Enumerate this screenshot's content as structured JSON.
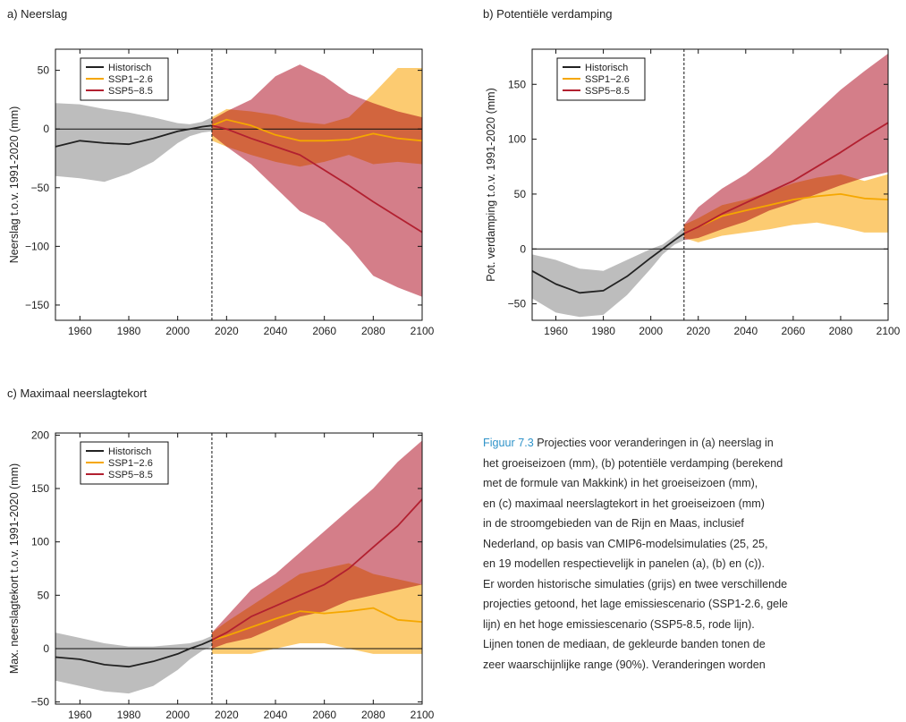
{
  "chart_data": [
    {
      "type": "line",
      "title": "a) Neerslag",
      "xlabel": "",
      "ylabel": "Neerslag t.o.v. 1991-2020 (mm)",
      "xlim": [
        1950,
        2100
      ],
      "ylim": [
        -163,
        68
      ],
      "xticks": [
        1960,
        1980,
        2000,
        2020,
        2040,
        2060,
        2080,
        2100
      ],
      "yticks": [
        50,
        0,
        -50,
        -100,
        -150
      ],
      "ytick_labels": [
        "50",
        "0",
        "−50",
        "−100",
        "−150"
      ],
      "split_year": 2014,
      "legend": [
        "Historisch",
        "SSP1−2.6",
        "SSP5−8.5"
      ],
      "legend_placement": "top-left",
      "series": [
        {
          "name": "Historisch",
          "color": "#222222",
          "band_color": "#bdbdbd",
          "x": [
            1950,
            1960,
            1970,
            1980,
            1990,
            2000,
            2005,
            2010,
            2014
          ],
          "y": [
            -15,
            -10,
            -12,
            -13,
            -8,
            -2,
            0,
            2,
            3
          ],
          "lower": [
            -40,
            -42,
            -45,
            -38,
            -28,
            -12,
            -6,
            -3,
            -2
          ],
          "upper": [
            22,
            21,
            17,
            14,
            10,
            5,
            4,
            6,
            10
          ]
        },
        {
          "name": "SSP1−2.6",
          "color": "#f5a700",
          "band_color": "#fbc258",
          "x": [
            2014,
            2020,
            2030,
            2040,
            2050,
            2060,
            2070,
            2080,
            2090,
            2100
          ],
          "y": [
            3,
            8,
            3,
            -5,
            -10,
            -10,
            -9,
            -4,
            -8,
            -10
          ],
          "lower": [
            -10,
            -15,
            -22,
            -28,
            -32,
            -28,
            -22,
            -30,
            -28,
            -30
          ],
          "upper": [
            10,
            17,
            15,
            12,
            6,
            4,
            10,
            30,
            52,
            52
          ]
        },
        {
          "name": "SSP5−8.5",
          "color": "#b22030",
          "band_color": "#c85a68",
          "x": [
            2014,
            2020,
            2030,
            2040,
            2050,
            2060,
            2070,
            2080,
            2090,
            2100
          ],
          "y": [
            3,
            0,
            -8,
            -15,
            -22,
            -35,
            -48,
            -62,
            -75,
            -88
          ],
          "lower": [
            -5,
            -15,
            -30,
            -50,
            -70,
            -80,
            -100,
            -125,
            -135,
            -143
          ],
          "upper": [
            8,
            15,
            25,
            45,
            55,
            45,
            30,
            22,
            15,
            10
          ]
        }
      ]
    },
    {
      "type": "line",
      "title": "b) Potentiële verdamping",
      "xlabel": "",
      "ylabel": "Pot. verdamping t.o.v. 1991-2020 (mm)",
      "xlim": [
        1950,
        2100
      ],
      "ylim": [
        -65,
        182
      ],
      "xticks": [
        1960,
        1980,
        2000,
        2020,
        2040,
        2060,
        2080,
        2100
      ],
      "yticks": [
        150,
        100,
        50,
        0,
        -50
      ],
      "ytick_labels": [
        "150",
        "100",
        "50",
        "0",
        "−50"
      ],
      "split_year": 2014,
      "legend": [
        "Historisch",
        "SSP1−2.6",
        "SSP5−8.5"
      ],
      "legend_placement": "top-left",
      "series": [
        {
          "name": "Historisch",
          "color": "#222222",
          "band_color": "#bdbdbd",
          "x": [
            1950,
            1960,
            1970,
            1980,
            1990,
            2000,
            2005,
            2010,
            2014
          ],
          "y": [
            -20,
            -32,
            -40,
            -38,
            -25,
            -8,
            0,
            8,
            14
          ],
          "lower": [
            -45,
            -58,
            -62,
            -60,
            -42,
            -18,
            -5,
            4,
            8
          ],
          "upper": [
            -5,
            -10,
            -18,
            -20,
            -10,
            0,
            4,
            12,
            20
          ]
        },
        {
          "name": "SSP1−2.6",
          "color": "#f5a700",
          "band_color": "#fbc258",
          "x": [
            2014,
            2020,
            2030,
            2040,
            2050,
            2060,
            2070,
            2080,
            2090,
            2100
          ],
          "y": [
            14,
            20,
            30,
            35,
            40,
            45,
            48,
            50,
            46,
            45
          ],
          "lower": [
            10,
            6,
            12,
            15,
            18,
            22,
            24,
            20,
            15,
            15
          ],
          "upper": [
            22,
            28,
            40,
            45,
            52,
            60,
            65,
            68,
            62,
            68
          ]
        },
        {
          "name": "SSP5−8.5",
          "color": "#b22030",
          "band_color": "#c85a68",
          "x": [
            2014,
            2020,
            2030,
            2040,
            2050,
            2060,
            2070,
            2080,
            2090,
            2100
          ],
          "y": [
            14,
            20,
            32,
            42,
            52,
            62,
            75,
            88,
            102,
            115
          ],
          "lower": [
            8,
            10,
            18,
            25,
            35,
            42,
            50,
            58,
            65,
            70
          ],
          "upper": [
            22,
            38,
            55,
            68,
            85,
            105,
            125,
            145,
            162,
            178
          ]
        }
      ]
    },
    {
      "type": "line",
      "title": "c) Maximaal neerslagtekort",
      "xlabel": "",
      "ylabel": "Max. neerslagtekort t.o.v. 1991-2020 (mm)",
      "xlim": [
        1950,
        2100
      ],
      "ylim": [
        -52,
        202
      ],
      "xticks": [
        1960,
        1980,
        2000,
        2020,
        2040,
        2060,
        2080,
        2100
      ],
      "yticks": [
        200,
        150,
        100,
        50,
        0,
        -50
      ],
      "ytick_labels": [
        "200",
        "150",
        "100",
        "50",
        "0",
        "−50"
      ],
      "split_year": 2014,
      "legend": [
        "Historisch",
        "SSP1−2.6",
        "SSP5−8.5"
      ],
      "legend_placement": "top-left",
      "series": [
        {
          "name": "Historisch",
          "color": "#222222",
          "band_color": "#bdbdbd",
          "x": [
            1950,
            1960,
            1970,
            1980,
            1990,
            2000,
            2005,
            2010,
            2014
          ],
          "y": [
            -8,
            -10,
            -15,
            -17,
            -12,
            -5,
            0,
            4,
            8
          ],
          "lower": [
            -30,
            -35,
            -40,
            -42,
            -35,
            -20,
            -10,
            -2,
            2
          ],
          "upper": [
            15,
            10,
            5,
            2,
            2,
            4,
            5,
            8,
            12
          ]
        },
        {
          "name": "SSP1−2.6",
          "color": "#f5a700",
          "band_color": "#fbc258",
          "x": [
            2014,
            2020,
            2030,
            2040,
            2050,
            2060,
            2070,
            2080,
            2090,
            2100
          ],
          "y": [
            8,
            12,
            20,
            28,
            35,
            33,
            35,
            38,
            27,
            25
          ],
          "lower": [
            -5,
            -5,
            -5,
            0,
            5,
            5,
            0,
            -5,
            -5,
            -5
          ],
          "upper": [
            15,
            25,
            40,
            55,
            70,
            75,
            80,
            70,
            65,
            60
          ]
        },
        {
          "name": "SSP5−8.5",
          "color": "#b22030",
          "band_color": "#c85a68",
          "x": [
            2014,
            2020,
            2030,
            2040,
            2050,
            2060,
            2070,
            2080,
            2090,
            2100
          ],
          "y": [
            8,
            15,
            30,
            40,
            50,
            60,
            75,
            95,
            115,
            140
          ],
          "lower": [
            0,
            5,
            10,
            20,
            30,
            35,
            45,
            50,
            55,
            60
          ],
          "upper": [
            15,
            30,
            55,
            70,
            90,
            110,
            130,
            150,
            175,
            195
          ]
        }
      ]
    }
  ],
  "caption": {
    "label": "Figuur 7.3",
    "lines": [
      " Projecties voor veranderingen in (a) neerslag in",
      "het groeiseizoen (mm), (b) potentiële verdamping (berekend",
      "met de formule van Makkink) in het groeiseizoen (mm),",
      "en (c) maximaal neerslagtekort in het groeiseizoen (mm)",
      "in de stroomgebieden van de Rijn en Maas, inclusief",
      "Nederland, op basis van CMIP6-modelsimulaties (25, 25,",
      "en 19 modellen respectievelijk in panelen (a), (b) en (c)).",
      "Er worden historische simulaties (grijs) en twee verschillende",
      "projecties getoond, het lage emissiescenario (SSP1-2.6, gele",
      "lijn) en het hoge emissiescenario (SSP5-8.5, rode lijn).",
      "Lijnen tonen de mediaan, de gekleurde banden tonen de",
      "zeer waarschijnlijke range (90%). Veranderingen worden"
    ]
  }
}
